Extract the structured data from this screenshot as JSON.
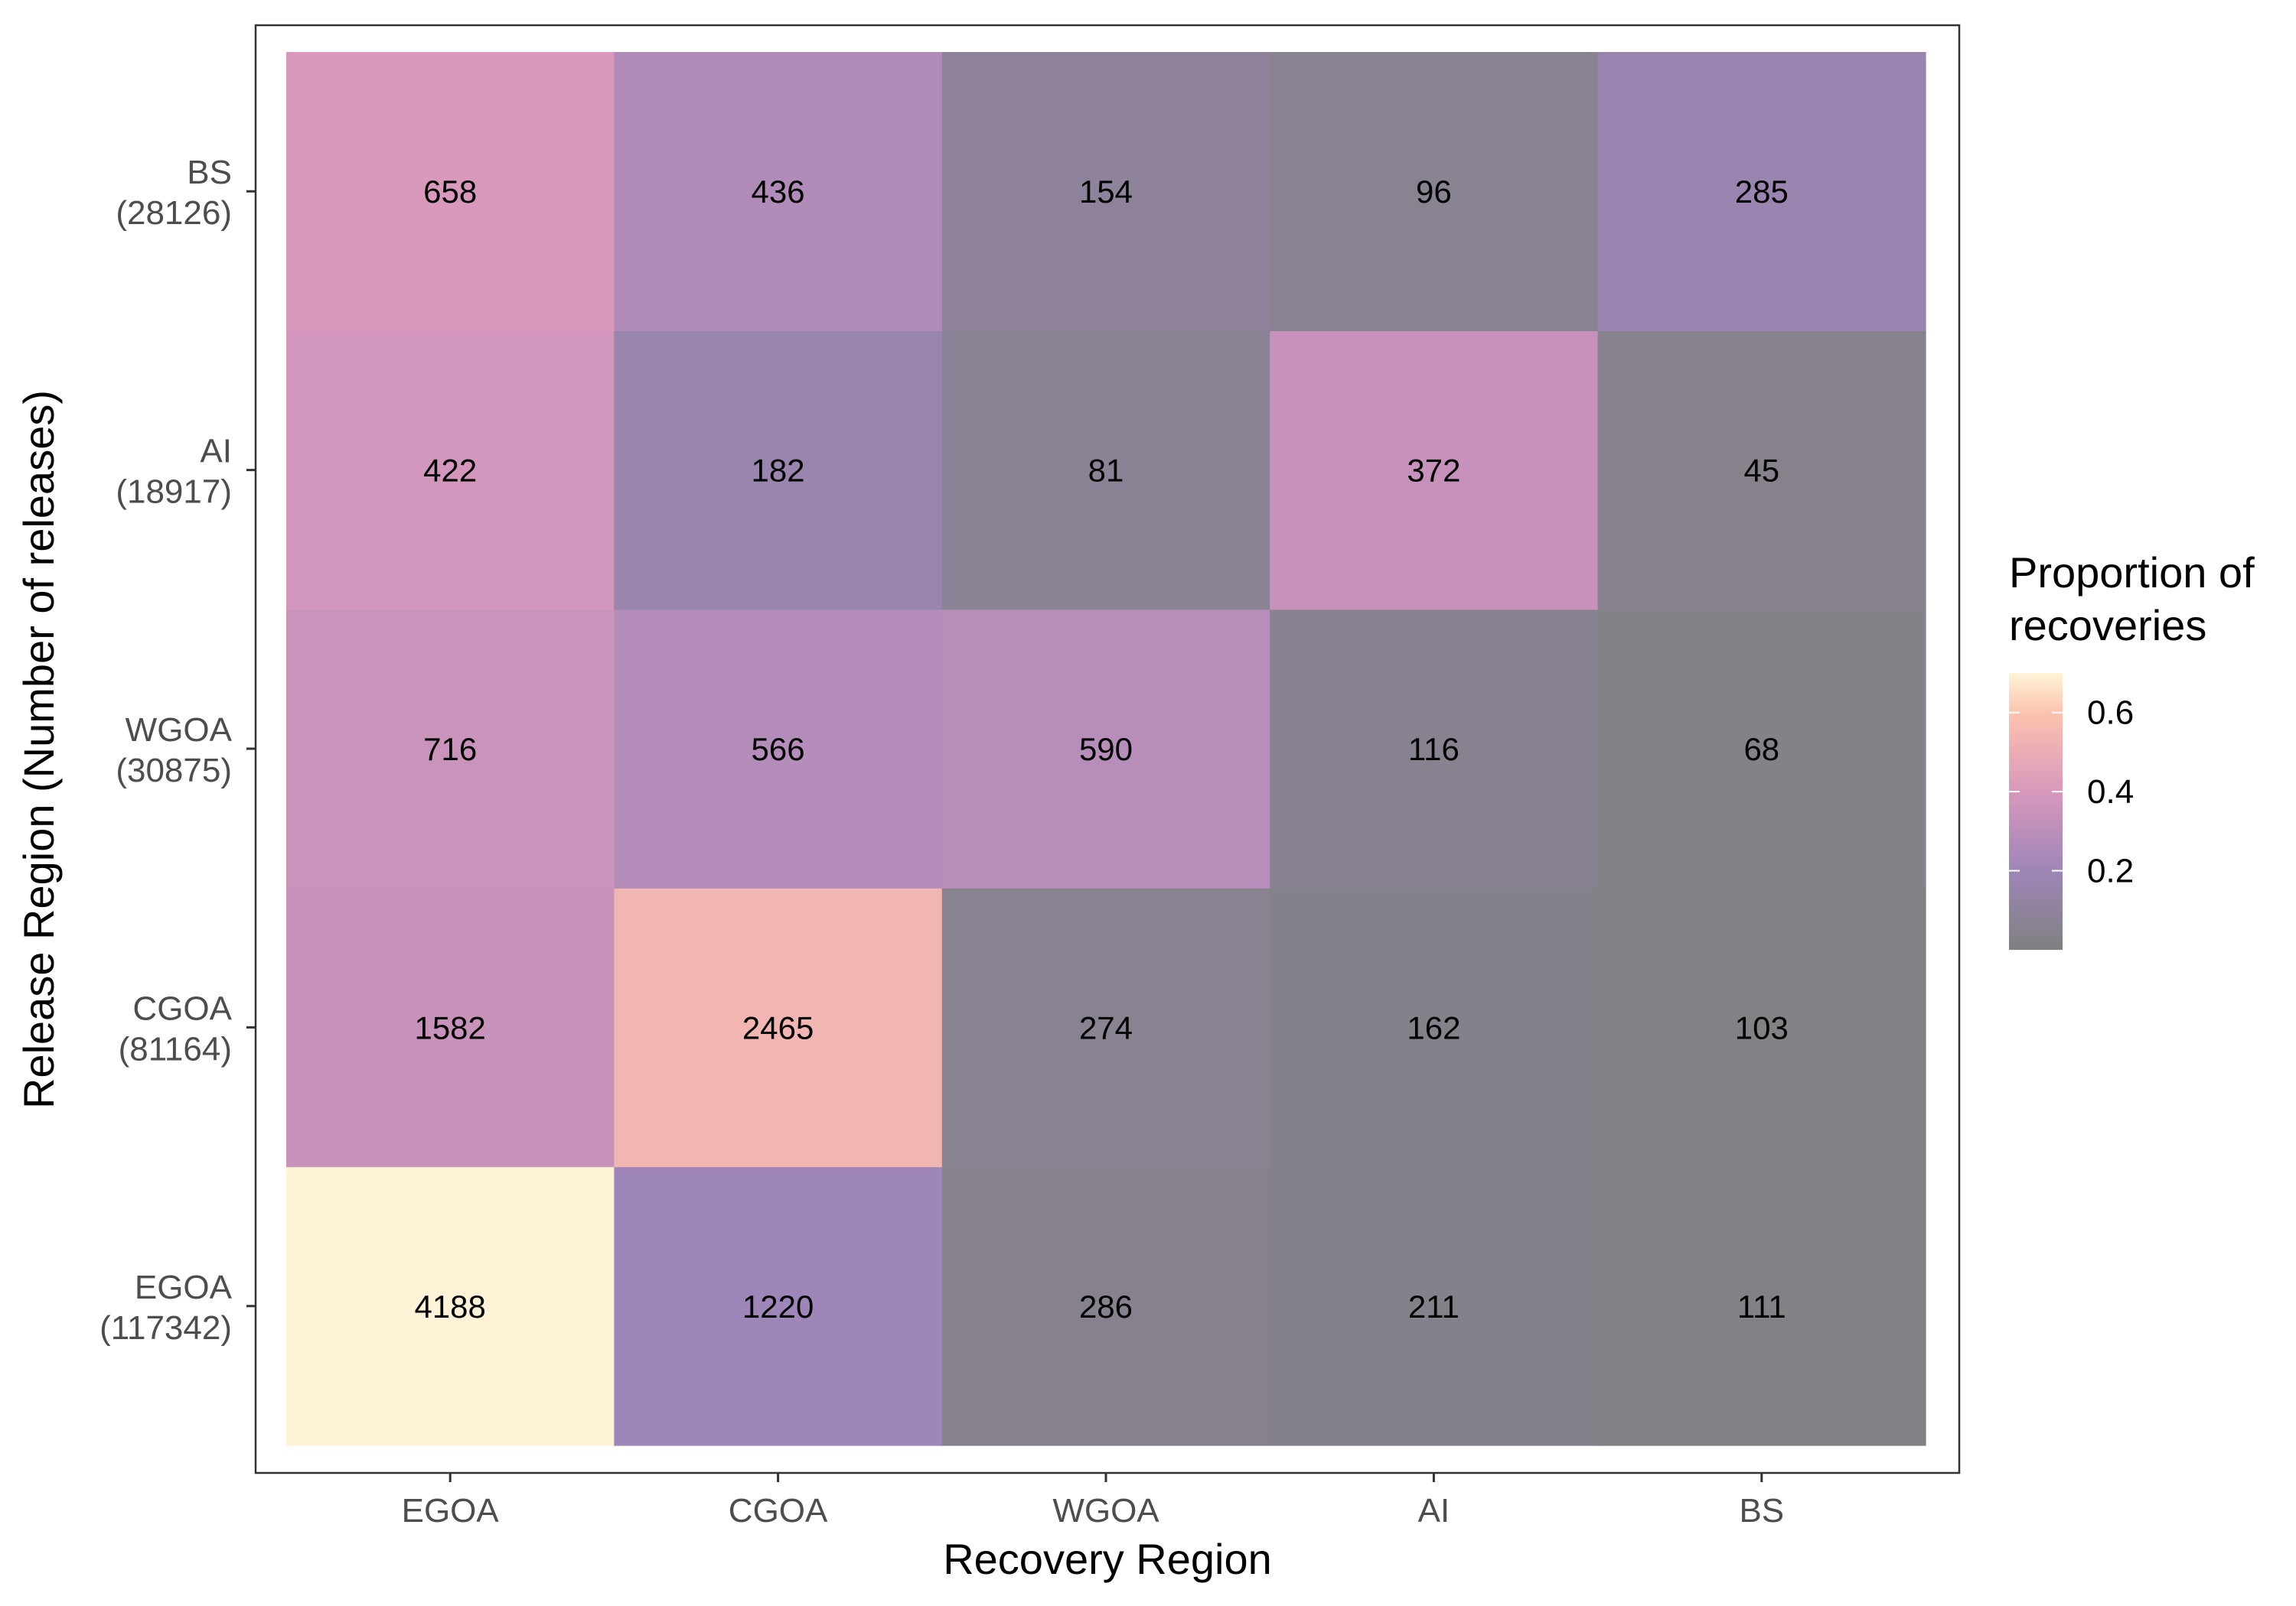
{
  "chart_data": {
    "type": "heatmap",
    "xlabel": "Recovery Region",
    "ylabel": "Release Region (Number of releases)",
    "x_categories": [
      "EGOA",
      "CGOA",
      "WGOA",
      "AI",
      "BS"
    ],
    "y_categories": [
      {
        "region": "EGOA",
        "releases": "(117342)"
      },
      {
        "region": "CGOA",
        "releases": "(81164)"
      },
      {
        "region": "WGOA",
        "releases": "(30875)"
      },
      {
        "region": "AI",
        "releases": "(18917)"
      },
      {
        "region": "BS",
        "releases": "(28126)"
      }
    ],
    "counts": [
      [
        4188,
        1220,
        286,
        211,
        111
      ],
      [
        1582,
        2465,
        274,
        162,
        103
      ],
      [
        716,
        566,
        590,
        116,
        68
      ],
      [
        422,
        182,
        81,
        372,
        45
      ],
      [
        658,
        436,
        154,
        96,
        285
      ]
    ],
    "legend": {
      "title_lines": [
        "Proportion of",
        "recoveries"
      ],
      "ticks": [
        0.2,
        0.4,
        0.6
      ],
      "tick_labels": [
        "0.2",
        "0.4",
        "0.6"
      ],
      "range": [
        0.0,
        0.7
      ],
      "placement": "right"
    },
    "colors": {
      "low": "#808080",
      "mid_low": "#9e86b8",
      "mid": "#d898bc",
      "mid_high": "#fcc3ae",
      "high": "#ffffe0"
    },
    "grid": false
  }
}
